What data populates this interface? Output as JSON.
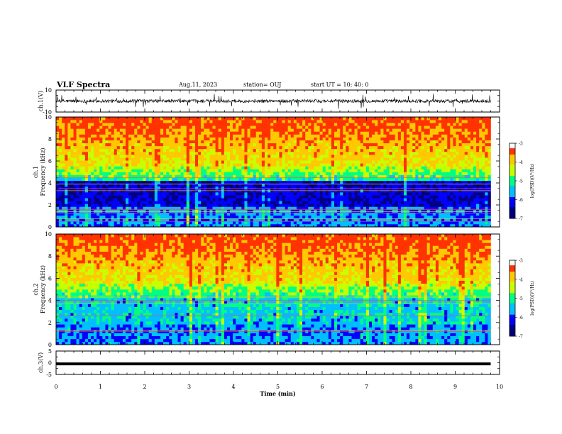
{
  "header": {
    "title": "VLF Spectra",
    "date": "Aug.11, 2023",
    "station": "station= OUJ",
    "start": "start  UT  =   10: 40: 0"
  },
  "chart_data": [
    {
      "type": "line",
      "panel": "ch1-waveform",
      "ylabel": "ch.1(V)",
      "ylim": [
        -10,
        10
      ],
      "ytick_labels": [
        "10",
        "-10"
      ],
      "xlim": [
        0,
        10
      ],
      "data_xrange": [
        0,
        9.8
      ],
      "baseline": 0,
      "color": "#000000"
    },
    {
      "type": "heatmap",
      "panel": "ch1-spectrogram",
      "ylabel": "ch.1\nFrequency (kHz)",
      "ylim": [
        0,
        10
      ],
      "yticks": [
        0,
        2,
        4,
        6,
        8,
        10
      ],
      "xlim": [
        0,
        10
      ],
      "data_xrange": [
        0,
        9.8
      ],
      "colorbar": {
        "label": "log(PSD)(V²/Hz)",
        "range": [
          -7,
          -3
        ],
        "tick_labels": [
          "-3",
          "-4",
          "-5",
          "-6",
          "-7"
        ]
      },
      "lines_khz": [
        0.5,
        0.75,
        1.2,
        1.4,
        1.6,
        3.3,
        3.5,
        3.9,
        4.5
      ]
    },
    {
      "type": "heatmap",
      "panel": "ch2-spectrogram",
      "ylabel": "ch.2\nFrequency (kHz)",
      "ylim": [
        0,
        10
      ],
      "yticks": [
        0,
        2,
        4,
        6,
        8,
        10
      ],
      "xlim": [
        0,
        10
      ],
      "data_xrange": [
        0,
        9.8
      ],
      "colorbar": {
        "label": "log(PSD)(V²/Hz)",
        "range": [
          -7,
          -3
        ],
        "tick_labels": [
          "-3",
          "-4",
          "-5",
          "-6",
          "-7"
        ]
      },
      "lines_khz": [
        1.2,
        1.3,
        2.6,
        3.7,
        4.0,
        4.3
      ]
    },
    {
      "type": "line",
      "panel": "ch3-waveform",
      "ylabel": "ch.3(V)",
      "ylim": [
        -5,
        5
      ],
      "ytick_labels": [
        "5",
        "0",
        "-5"
      ],
      "xlim": [
        0,
        10
      ],
      "data_xrange": [
        0,
        9.8
      ],
      "y": -0.5,
      "color": "#000000"
    }
  ],
  "x_axis": {
    "label": "Time (min)",
    "ticks": [
      0,
      1,
      2,
      3,
      4,
      5,
      6,
      7,
      8,
      9,
      10
    ]
  },
  "colors": {
    "colormap": [
      "#000080",
      "#0000ff",
      "#00bfff",
      "#00ff80",
      "#c8ff00",
      "#ffc800",
      "#ff3300",
      "#ffffff"
    ]
  }
}
